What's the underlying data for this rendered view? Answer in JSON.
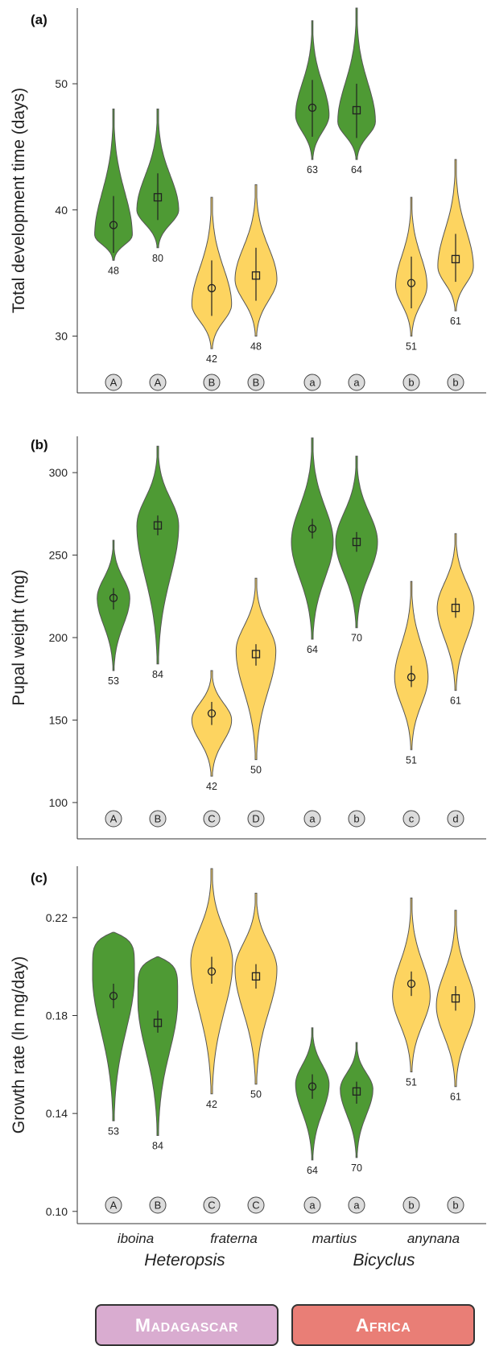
{
  "colors": {
    "madagascar_fill": "#4e9a34",
    "africa_fill": "#fdd460",
    "madagascar_box": "#d9acd0",
    "africa_box": "#e97e76"
  },
  "x_labels": {
    "species": [
      "iboina",
      "fraterna",
      "martius",
      "anynana"
    ],
    "genera": [
      "Heteropsis",
      "Bicyclus"
    ]
  },
  "regions": [
    "Madagascar",
    "Africa"
  ],
  "chart_data": [
    {
      "type": "violin",
      "panel_label": "(a)",
      "ylabel": "Total development time (days)",
      "yticks": [
        30,
        40,
        50
      ],
      "ylim": [
        25.5,
        56
      ],
      "violins": [
        {
          "fill": "madagascar",
          "marker": "circle",
          "min": 36,
          "max": 48,
          "mean": 38.8,
          "ci": [
            36.6,
            41.1
          ],
          "n": "48",
          "letter": "A",
          "mode": 38,
          "spread": 0.9
        },
        {
          "fill": "madagascar",
          "marker": "square",
          "min": 37,
          "max": 48,
          "mean": 41,
          "ci": [
            39.2,
            42.9
          ],
          "n": "80",
          "letter": "A",
          "mode": 40,
          "spread": 1.0
        },
        {
          "fill": "africa",
          "marker": "circle",
          "min": 29,
          "max": 41,
          "mean": 33.8,
          "ci": [
            31.6,
            36
          ],
          "n": "42",
          "letter": "B",
          "mode": 32.5,
          "spread": 0.95
        },
        {
          "fill": "africa",
          "marker": "square",
          "min": 30,
          "max": 42,
          "mean": 34.8,
          "ci": [
            32.8,
            37
          ],
          "n": "48",
          "letter": "B",
          "mode": 34.5,
          "spread": 1.0
        },
        {
          "fill": "madagascar",
          "marker": "circle",
          "min": 44,
          "max": 55,
          "mean": 48.1,
          "ci": [
            45.8,
            50.3
          ],
          "n": "63",
          "letter": "a",
          "mode": 47.5,
          "spread": 0.8
        },
        {
          "fill": "madagascar",
          "marker": "square",
          "min": 44,
          "max": 56,
          "mean": 47.9,
          "ci": [
            45.7,
            50
          ],
          "n": "64",
          "letter": "a",
          "mode": 47,
          "spread": 0.9
        },
        {
          "fill": "africa",
          "marker": "circle",
          "min": 30,
          "max": 41,
          "mean": 34.2,
          "ci": [
            32.2,
            36.3
          ],
          "n": "51",
          "letter": "b",
          "mode": 34,
          "spread": 0.75
        },
        {
          "fill": "africa",
          "marker": "square",
          "min": 32,
          "max": 44,
          "mean": 36.1,
          "ci": [
            34.3,
            38.1
          ],
          "n": "61",
          "letter": "b",
          "mode": 35.5,
          "spread": 0.85
        }
      ]
    },
    {
      "type": "violin",
      "panel_label": "(b)",
      "ylabel": "Pupal weight (mg)",
      "yticks": [
        100,
        150,
        200,
        250,
        300
      ],
      "ylim": [
        78,
        322
      ],
      "violins": [
        {
          "fill": "madagascar",
          "marker": "circle",
          "min": 180,
          "max": 259,
          "mean": 224,
          "ci": [
            217,
            230
          ],
          "n": "53",
          "letter": "A",
          "mode": 224,
          "spread": 0.78
        },
        {
          "fill": "madagascar",
          "marker": "square",
          "min": 184,
          "max": 316,
          "mean": 268,
          "ci": [
            262,
            274
          ],
          "n": "84",
          "letter": "B",
          "mode": 268,
          "spread": 1.0
        },
        {
          "fill": "africa",
          "marker": "circle",
          "min": 116,
          "max": 180,
          "mean": 154,
          "ci": [
            147,
            161
          ],
          "n": "42",
          "letter": "C",
          "mode": 150,
          "spread": 0.95
        },
        {
          "fill": "africa",
          "marker": "square",
          "min": 126,
          "max": 236,
          "mean": 190,
          "ci": [
            183,
            196
          ],
          "n": "50",
          "letter": "D",
          "mode": 192,
          "spread": 0.95
        },
        {
          "fill": "madagascar",
          "marker": "circle",
          "min": 199,
          "max": 321,
          "mean": 266,
          "ci": [
            260,
            272
          ],
          "n": "64",
          "letter": "a",
          "mode": 258,
          "spread": 1.0
        },
        {
          "fill": "madagascar",
          "marker": "square",
          "min": 206,
          "max": 310,
          "mean": 258,
          "ci": [
            252,
            264
          ],
          "n": "70",
          "letter": "b",
          "mode": 258,
          "spread": 1.0
        },
        {
          "fill": "africa",
          "marker": "circle",
          "min": 132,
          "max": 234,
          "mean": 176,
          "ci": [
            170,
            183
          ],
          "n": "51",
          "letter": "c",
          "mode": 176,
          "spread": 0.8
        },
        {
          "fill": "africa",
          "marker": "square",
          "min": 168,
          "max": 263,
          "mean": 218,
          "ci": [
            212,
            224
          ],
          "n": "61",
          "letter": "d",
          "mode": 218,
          "spread": 0.88
        }
      ]
    },
    {
      "type": "violin",
      "panel_label": "(c)",
      "ylabel": "Growth rate (ln mg/day)",
      "yticks": [
        0.1,
        0.14,
        0.18,
        0.22
      ],
      "ylim": [
        0.095,
        0.241
      ],
      "violins": [
        {
          "fill": "madagascar",
          "marker": "circle",
          "min": 0.137,
          "max": 0.214,
          "mean": 0.188,
          "ci": [
            0.183,
            0.193
          ],
          "n": "53",
          "letter": "A",
          "mode": 0.196,
          "spread": 1.0,
          "flat_top": true
        },
        {
          "fill": "madagascar",
          "marker": "square",
          "min": 0.131,
          "max": 0.204,
          "mean": 0.177,
          "ci": [
            0.173,
            0.182
          ],
          "n": "84",
          "letter": "B",
          "mode": 0.186,
          "spread": 0.95,
          "flat_top": true
        },
        {
          "fill": "africa",
          "marker": "circle",
          "min": 0.148,
          "max": 0.24,
          "mean": 0.198,
          "ci": [
            0.193,
            0.204
          ],
          "n": "42",
          "letter": "C",
          "mode": 0.202,
          "spread": 1.0
        },
        {
          "fill": "africa",
          "marker": "square",
          "min": 0.152,
          "max": 0.23,
          "mean": 0.196,
          "ci": [
            0.191,
            0.201
          ],
          "n": "50",
          "letter": "C",
          "mode": 0.199,
          "spread": 1.0
        },
        {
          "fill": "madagascar",
          "marker": "circle",
          "min": 0.121,
          "max": 0.175,
          "mean": 0.151,
          "ci": [
            0.146,
            0.156
          ],
          "n": "64",
          "letter": "a",
          "mode": 0.152,
          "spread": 0.8
        },
        {
          "fill": "madagascar",
          "marker": "square",
          "min": 0.122,
          "max": 0.169,
          "mean": 0.149,
          "ci": [
            0.144,
            0.153
          ],
          "n": "70",
          "letter": "a",
          "mode": 0.15,
          "spread": 0.78
        },
        {
          "fill": "africa",
          "marker": "circle",
          "min": 0.157,
          "max": 0.228,
          "mean": 0.193,
          "ci": [
            0.188,
            0.198
          ],
          "n": "51",
          "letter": "b",
          "mode": 0.188,
          "spread": 0.9
        },
        {
          "fill": "africa",
          "marker": "square",
          "min": 0.151,
          "max": 0.223,
          "mean": 0.187,
          "ci": [
            0.182,
            0.192
          ],
          "n": "61",
          "letter": "b",
          "mode": 0.184,
          "spread": 0.92
        }
      ]
    }
  ]
}
